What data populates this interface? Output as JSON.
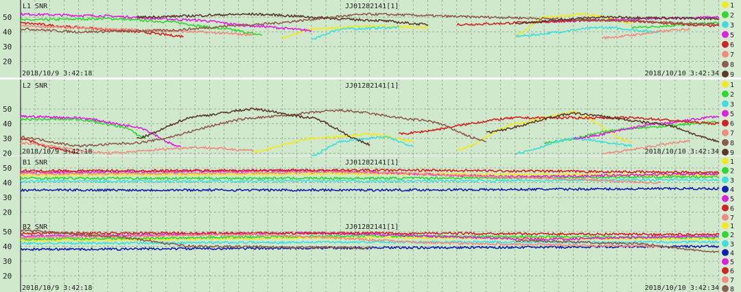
{
  "chart_data": [
    {
      "type": "line",
      "title": "L1 SNR",
      "id_label": "JJ01282141[1]",
      "start_time": "2018/10/9 3:42:18",
      "end_time": "2018/10/10 3:42:34",
      "xlim_hours": [
        0,
        24
      ],
      "ylim": [
        15,
        57
      ],
      "yticks": [
        "50",
        "40",
        "30",
        "20"
      ],
      "grid": true,
      "legend_position": "right",
      "series": [
        {
          "name": "1",
          "color": "#f2ea1e",
          "segments": [
            [
              [
                9,
                36
              ],
              [
                10,
                42
              ],
              [
                12,
                44
              ],
              [
                14,
                43
              ]
            ],
            [
              [
                17,
                37
              ],
              [
                18,
                50
              ],
              [
                19.5,
                52
              ],
              [
                21,
                46
              ]
            ]
          ]
        },
        {
          "name": "2",
          "color": "#2fd82f",
          "segments": [
            [
              [
                0,
                48
              ],
              [
                3,
                49
              ],
              [
                5,
                47
              ],
              [
                7,
                42
              ],
              [
                8.3,
                38
              ]
            ],
            [
              [
                21,
                43
              ],
              [
                24,
                46
              ]
            ]
          ]
        },
        {
          "name": "3",
          "color": "#3fdede",
          "segments": [
            [
              [
                10,
                35
              ],
              [
                11,
                42
              ],
              [
                13,
                43
              ]
            ],
            [
              [
                17,
                37
              ],
              [
                20,
                43
              ],
              [
                22,
                40
              ]
            ]
          ]
        },
        {
          "name": "5",
          "color": "#e01fe0",
          "segments": [
            [
              [
                0,
                52
              ],
              [
                2.5,
                51
              ],
              [
                6,
                48
              ],
              [
                8,
                44
              ],
              [
                10,
                41
              ]
            ],
            [
              [
                18,
                47
              ],
              [
                22,
                49
              ],
              [
                24,
                50
              ]
            ]
          ]
        },
        {
          "name": "6",
          "color": "#d32222",
          "segments": [
            [
              [
                0,
                46
              ],
              [
                2,
                43
              ],
              [
                4,
                40
              ],
              [
                5.6,
                37
              ]
            ],
            [
              [
                15,
                45
              ],
              [
                20,
                48
              ],
              [
                24,
                44
              ]
            ]
          ]
        },
        {
          "name": "7",
          "color": "#ee8c80",
          "segments": [
            [
              [
                0,
                44
              ],
              [
                3,
                42
              ],
              [
                6,
                40
              ],
              [
                8,
                38
              ]
            ],
            [
              [
                20,
                36
              ],
              [
                23,
                42
              ]
            ]
          ]
        },
        {
          "name": "8",
          "color": "#8e5c4c",
          "segments": [
            [
              [
                0,
                42
              ],
              [
                2,
                40
              ],
              [
                5,
                41
              ],
              [
                8,
                45
              ],
              [
                12,
                52
              ],
              [
                16,
                50
              ],
              [
                20,
                48
              ],
              [
                24,
                45
              ]
            ]
          ]
        },
        {
          "name": "9",
          "color": "#5a3a28",
          "segments": [
            [
              [
                4,
                50
              ],
              [
                8,
                52
              ],
              [
                12,
                48
              ],
              [
                14,
                45
              ]
            ],
            [
              [
                17,
                46
              ],
              [
                20,
                50
              ],
              [
                24,
                49
              ]
            ]
          ]
        }
      ]
    },
    {
      "type": "line",
      "title": "L2 SNR",
      "id_label": "JJ01282141[1]",
      "start_time": "2018/10/9 3:42:18",
      "end_time": "2018/10/10 3:42:34",
      "xlim_hours": [
        0,
        24
      ],
      "ylim": [
        15,
        57
      ],
      "yticks": [
        "50",
        "40",
        "30",
        "20"
      ],
      "grid": true,
      "legend_position": "right",
      "series": [
        {
          "name": "1",
          "color": "#f2ea1e",
          "segments": [
            [
              [
                8,
                21
              ],
              [
                10,
                30
              ],
              [
                12,
                33
              ],
              [
                13.5,
                28
              ]
            ],
            [
              [
                15,
                22
              ],
              [
                17,
                40
              ],
              [
                19,
                48
              ],
              [
                21,
                27
              ]
            ]
          ]
        },
        {
          "name": "2",
          "color": "#2fd82f",
          "segments": [
            [
              [
                0,
                43
              ],
              [
                2,
                43
              ],
              [
                3.5,
                38
              ],
              [
                4.3,
                30
              ]
            ],
            [
              [
                18,
                27
              ],
              [
                21,
                37
              ],
              [
                24,
                41
              ]
            ]
          ]
        },
        {
          "name": "3",
          "color": "#3fdede",
          "segments": [
            [
              [
                10,
                18
              ],
              [
                11,
                28
              ],
              [
                12.5,
                31
              ],
              [
                13.5,
                25
              ]
            ],
            [
              [
                17,
                20
              ],
              [
                19,
                30
              ],
              [
                21,
                25
              ]
            ]
          ]
        },
        {
          "name": "5",
          "color": "#e01fe0",
          "segments": [
            [
              [
                0,
                45
              ],
              [
                2,
                44
              ],
              [
                4,
                38
              ],
              [
                5.5,
                24
              ]
            ],
            [
              [
                19,
                30
              ],
              [
                22,
                40
              ],
              [
                24,
                45
              ]
            ]
          ]
        },
        {
          "name": "6",
          "color": "#d32222",
          "segments": [
            [
              [
                0,
                30
              ],
              [
                1,
                24
              ],
              [
                2,
                20
              ]
            ],
            [
              [
                13,
                33
              ],
              [
                17,
                44
              ],
              [
                21,
                44
              ],
              [
                24,
                40
              ]
            ]
          ]
        },
        {
          "name": "7",
          "color": "#ee8c80",
          "segments": [
            [
              [
                0,
                27
              ],
              [
                3,
                20
              ],
              [
                6,
                24
              ],
              [
                8,
                22
              ]
            ],
            [
              [
                20,
                20
              ],
              [
                23,
                28
              ]
            ]
          ]
        },
        {
          "name": "8",
          "color": "#8e5c4c",
          "segments": [
            [
              [
                0,
                31
              ],
              [
                2,
                25
              ],
              [
                4,
                27
              ],
              [
                8,
                44
              ],
              [
                11,
                49
              ],
              [
                14,
                42
              ],
              [
                16,
                28
              ]
            ]
          ]
        },
        {
          "name": "9",
          "color": "#5a3a28",
          "segments": [
            [
              [
                4,
                30
              ],
              [
                6,
                45
              ],
              [
                8,
                50
              ],
              [
                10,
                44
              ],
              [
                12,
                26
              ]
            ],
            [
              [
                16,
                34
              ],
              [
                19,
                47
              ],
              [
                22,
                40
              ],
              [
                24,
                28
              ]
            ]
          ]
        }
      ]
    },
    {
      "type": "line",
      "title": "B1 SNR",
      "id_label": "JJ01282141[1]",
      "xlim_hours": [
        0,
        24
      ],
      "ylim": [
        15,
        52
      ],
      "yticks": [
        "50",
        "40",
        "30",
        "20"
      ],
      "grid": true,
      "legend_position": "right",
      "series": [
        {
          "name": "1",
          "color": "#f2ea1e",
          "segments": [
            [
              [
                0,
                45
              ],
              [
                12,
                46
              ],
              [
                24,
                45
              ]
            ]
          ]
        },
        {
          "name": "2",
          "color": "#2fd82f",
          "segments": [
            [
              [
                0,
                43
              ],
              [
                12,
                43
              ],
              [
                24,
                44
              ]
            ]
          ]
        },
        {
          "name": "3",
          "color": "#3fdede",
          "segments": [
            [
              [
                0,
                41
              ],
              [
                12,
                41
              ],
              [
                24,
                42
              ]
            ]
          ]
        },
        {
          "name": "4",
          "color": "#1020b0",
          "segments": [
            [
              [
                0,
                35
              ],
              [
                12,
                35
              ],
              [
                24,
                36
              ]
            ]
          ]
        },
        {
          "name": "5",
          "color": "#e01fe0",
          "segments": [
            [
              [
                0,
                47
              ],
              [
                10,
                48
              ],
              [
                17,
                44
              ],
              [
                24,
                46
              ]
            ]
          ]
        },
        {
          "name": "6",
          "color": "#d32222",
          "segments": [
            [
              [
                0,
                48
              ],
              [
                12,
                48.5
              ],
              [
                24,
                47
              ]
            ]
          ]
        },
        {
          "name": "7",
          "color": "#ee8c80",
          "segments": [
            [
              [
                0,
                46
              ],
              [
                12,
                47
              ],
              [
                18,
                43
              ],
              [
                22,
                40
              ]
            ]
          ]
        }
      ]
    },
    {
      "type": "line",
      "title": "B2 SNR",
      "id_label": "JJ01282141[1]",
      "start_time": "2018/10/9 3:42:18",
      "end_time": "2018/10/10 3:42:34",
      "xlim_hours": [
        0,
        24
      ],
      "ylim": [
        15,
        52
      ],
      "yticks": [
        "50",
        "40",
        "30",
        "20"
      ],
      "grid": true,
      "legend_position": "right",
      "series": [
        {
          "name": "1",
          "color": "#f2ea1e",
          "segments": [
            [
              [
                0,
                44
              ],
              [
                12,
                46
              ],
              [
                24,
                45
              ]
            ]
          ]
        },
        {
          "name": "2",
          "color": "#2fd82f",
          "segments": [
            [
              [
                0,
                45
              ],
              [
                12,
                47
              ],
              [
                24,
                46
              ]
            ]
          ]
        },
        {
          "name": "3",
          "color": "#3fdede",
          "segments": [
            [
              [
                0,
                42
              ],
              [
                12,
                43
              ],
              [
                24,
                43
              ]
            ]
          ]
        },
        {
          "name": "4",
          "color": "#1020b0",
          "segments": [
            [
              [
                0,
                38
              ],
              [
                12,
                39
              ],
              [
                24,
                40
              ]
            ]
          ]
        },
        {
          "name": "5",
          "color": "#e01fe0",
          "segments": [
            [
              [
                0,
                47
              ],
              [
                10,
                49
              ],
              [
                18,
                45
              ],
              [
                24,
                47
              ]
            ]
          ]
        },
        {
          "name": "6",
          "color": "#d32222",
          "segments": [
            [
              [
                0,
                49
              ],
              [
                12,
                49
              ],
              [
                24,
                48
              ]
            ]
          ]
        },
        {
          "name": "7",
          "color": "#ee8c80",
          "segments": [
            [
              [
                0,
                46
              ],
              [
                8,
                48
              ],
              [
                15,
                42
              ],
              [
                22,
                40
              ]
            ]
          ]
        },
        {
          "name": "8",
          "color": "#8e5c4c",
          "segments": [
            [
              [
                0,
                51
              ],
              [
                3,
                47
              ],
              [
                6,
                40
              ],
              [
                12,
                39
              ]
            ],
            [
              [
                17,
                44
              ],
              [
                21,
                42
              ],
              [
                24,
                36
              ]
            ]
          ]
        }
      ]
    }
  ]
}
